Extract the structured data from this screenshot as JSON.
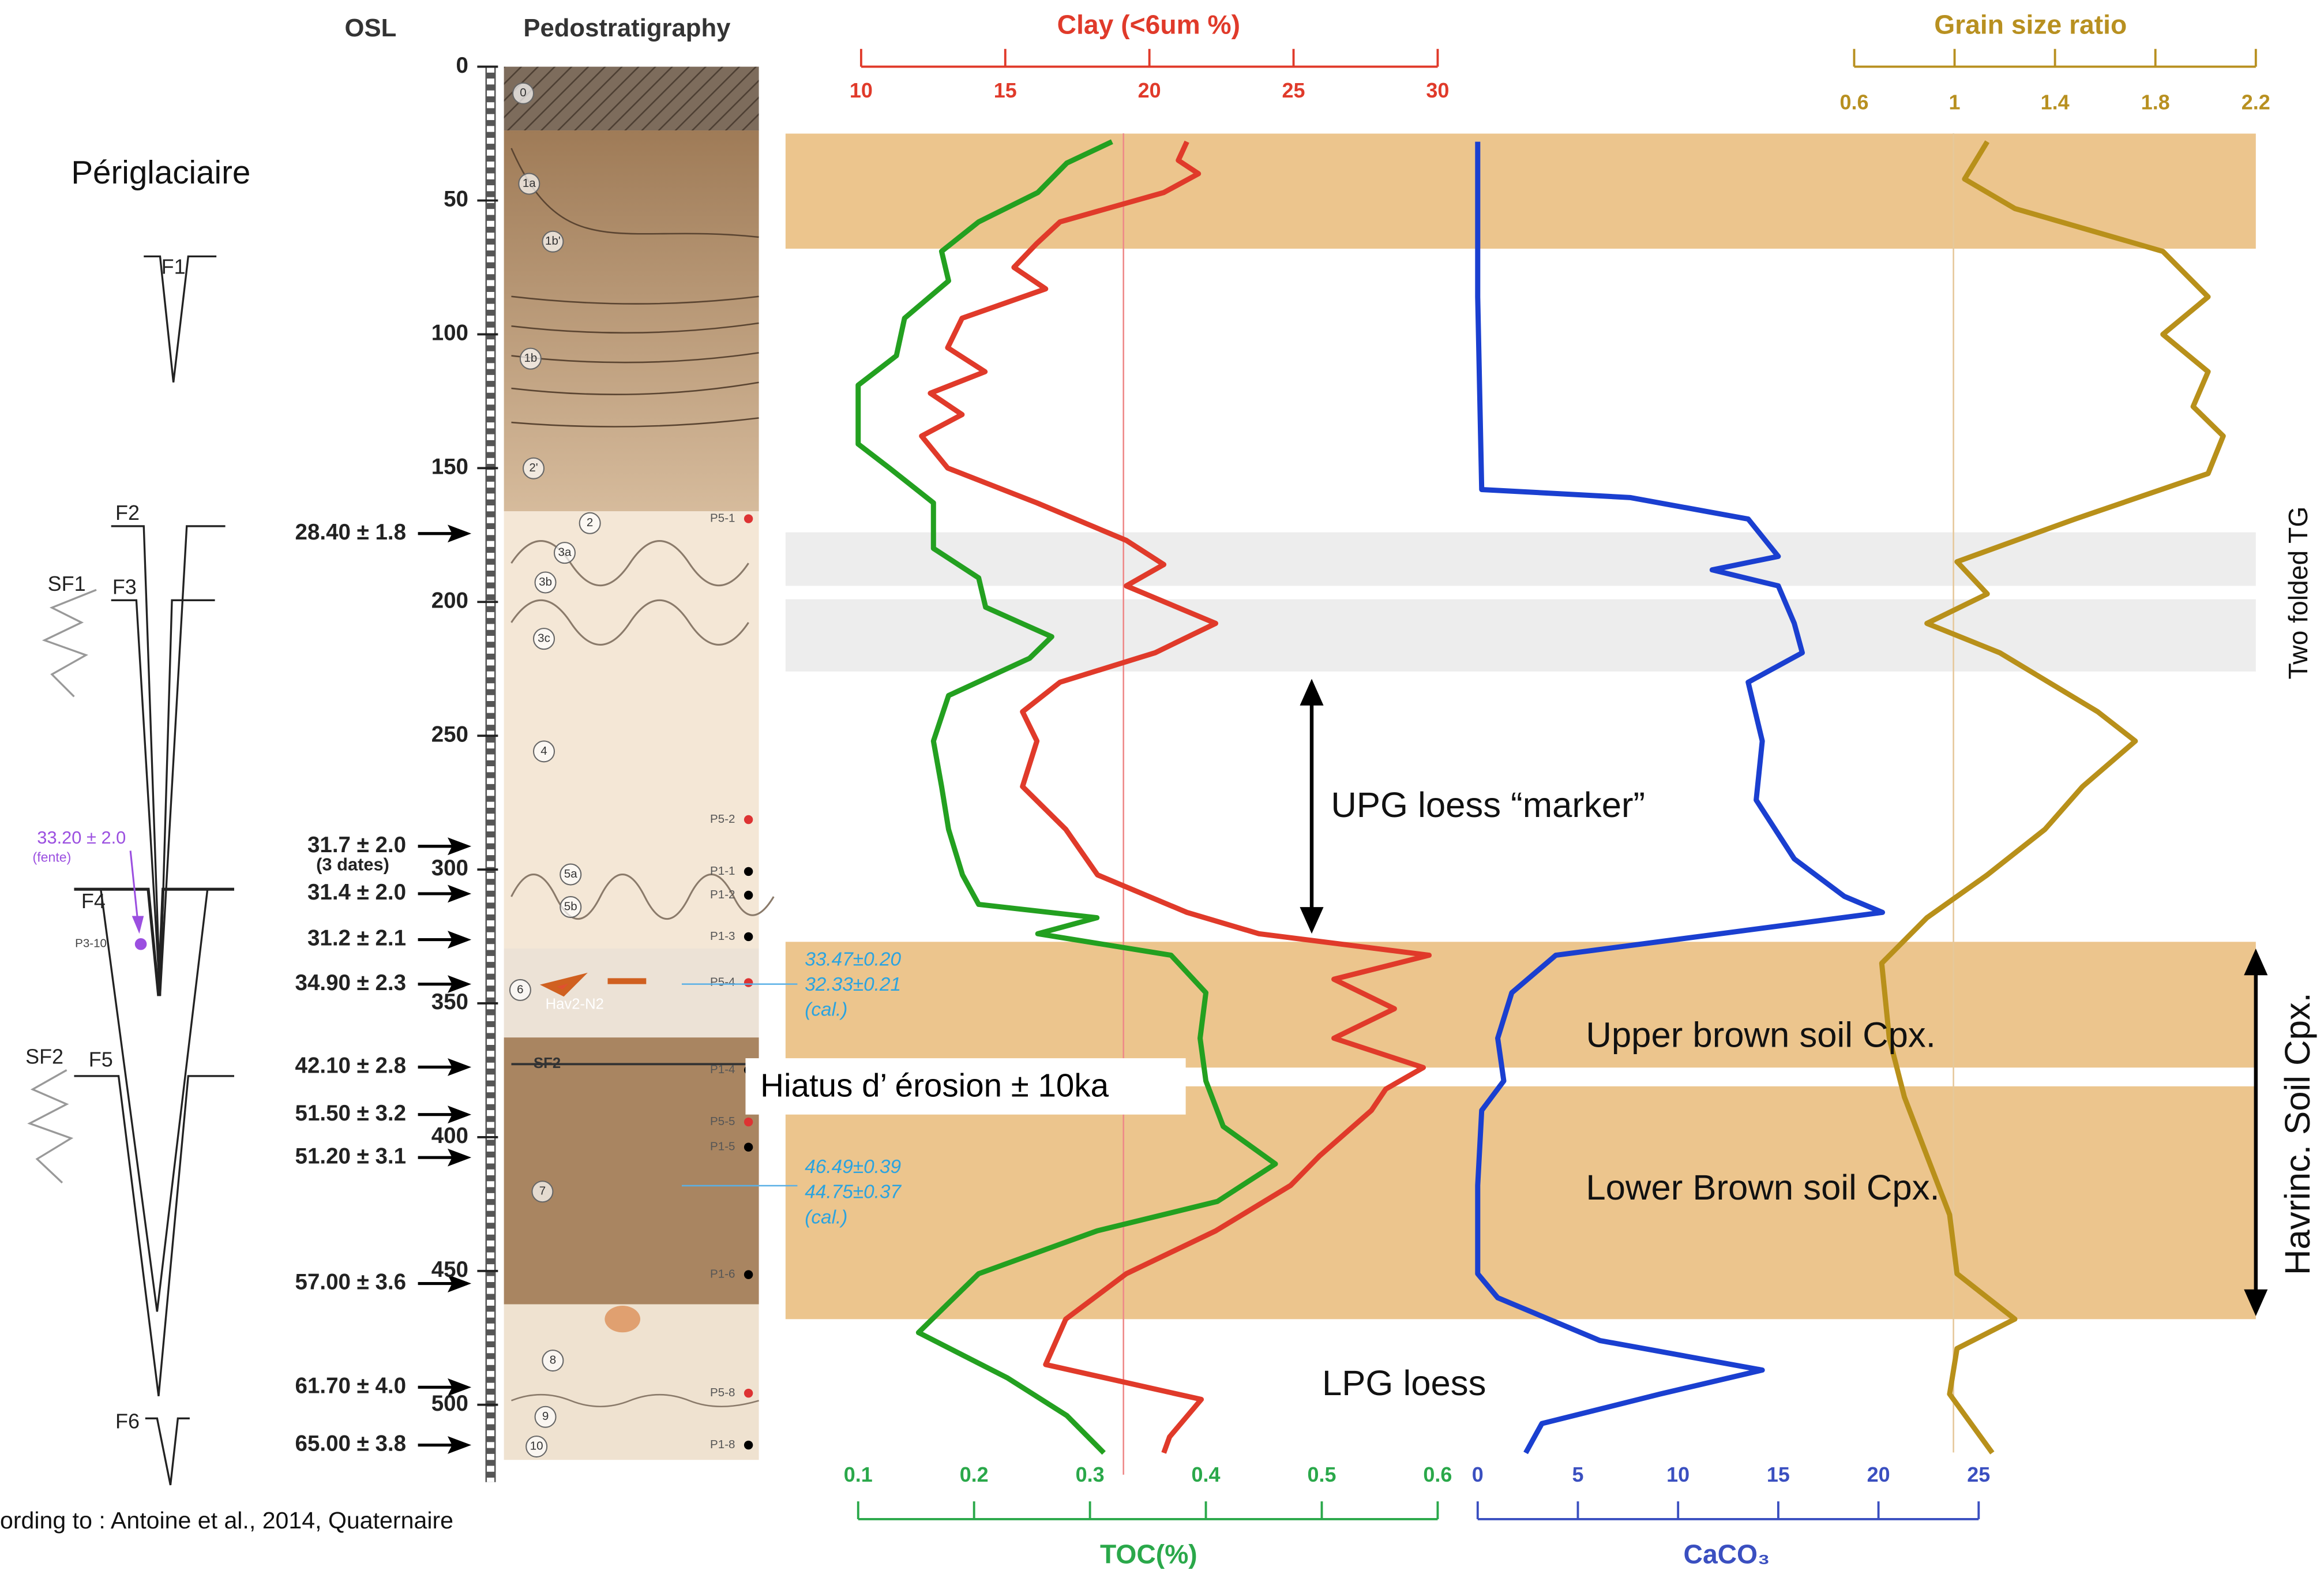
{
  "header": {
    "osl": "OSL",
    "pedostratigraphy": "Pedostratigraphy"
  },
  "depth_axis": {
    "ylim": [
      0,
      530
    ],
    "yticks": [
      0,
      50,
      100,
      150,
      200,
      250,
      300,
      350,
      400,
      450,
      500
    ]
  },
  "bands": [
    {
      "from": 25,
      "to": 68,
      "color": "#ecc58d"
    },
    {
      "from": 174,
      "to": 194,
      "color": "#ededed"
    },
    {
      "from": 199,
      "to": 226,
      "color": "#ededed"
    },
    {
      "from": 327,
      "to": 374,
      "color": "#ecc58d"
    },
    {
      "from": 381,
      "to": 468,
      "color": "#ecc58d"
    }
  ],
  "chart_data": [
    {
      "type": "line",
      "title": "Clay (<6um %)",
      "color": "#e03a2a",
      "title_color": "#e03a2a",
      "axis": "top",
      "xlim": [
        10,
        30
      ],
      "xticks": [
        10,
        15,
        20,
        25,
        30
      ],
      "depth": [
        28,
        35,
        40,
        47,
        58,
        66,
        75,
        83,
        94,
        105,
        114,
        122,
        130,
        138,
        150,
        163,
        177,
        186,
        194,
        208,
        219,
        230,
        241,
        252,
        269,
        285,
        302,
        316,
        324,
        332,
        341,
        352,
        363,
        374,
        382,
        390,
        407,
        418,
        435,
        451,
        468,
        485,
        498,
        512,
        518
      ],
      "values": [
        21.3,
        21.0,
        21.7,
        20.5,
        16.9,
        16.1,
        15.3,
        16.4,
        13.5,
        13.0,
        14.3,
        12.4,
        13.5,
        12.1,
        13.0,
        16.1,
        19.2,
        20.5,
        19.2,
        22.3,
        20.2,
        16.9,
        15.6,
        16.1,
        15.6,
        17.1,
        18.2,
        21.3,
        23.8,
        29.7,
        26.4,
        28.5,
        26.4,
        29.5,
        28.2,
        27.7,
        25.9,
        24.9,
        22.3,
        19.2,
        17.1,
        16.4,
        21.8,
        20.7,
        20.5
      ]
    },
    {
      "type": "line",
      "title": "TOC(%)",
      "color": "#23a020",
      "title_color": "#2aa84a",
      "axis": "bottom",
      "xlim": [
        0.1,
        0.6
      ],
      "xticks": [
        0.1,
        0.2,
        0.3,
        0.4,
        0.5,
        0.6
      ],
      "depth": [
        28,
        36,
        47,
        58,
        69,
        80,
        94,
        108,
        119,
        130,
        141,
        150,
        163,
        180,
        191,
        202,
        213,
        221,
        235,
        252,
        269,
        285,
        302,
        313,
        318,
        324,
        332,
        346,
        363,
        379,
        396,
        410,
        424,
        435,
        451,
        462,
        473,
        490,
        504,
        518
      ],
      "values": [
        0.319,
        0.28,
        0.255,
        0.204,
        0.172,
        0.178,
        0.14,
        0.133,
        0.1,
        0.1,
        0.1,
        0.127,
        0.165,
        0.165,
        0.204,
        0.21,
        0.267,
        0.248,
        0.178,
        0.165,
        0.172,
        0.178,
        0.19,
        0.204,
        0.306,
        0.255,
        0.37,
        0.4,
        0.395,
        0.4,
        0.415,
        0.46,
        0.41,
        0.306,
        0.204,
        0.178,
        0.152,
        0.229,
        0.28,
        0.312
      ]
    },
    {
      "type": "line",
      "title": "CaCO₃",
      "color": "#1a3fd0",
      "title_color": "#3a4fc0",
      "axis": "bottom",
      "xlim": [
        0,
        25
      ],
      "xticks": [
        0,
        5,
        10,
        15,
        20,
        25
      ],
      "depth": [
        28,
        86,
        158,
        161,
        169,
        183,
        188,
        194,
        208,
        219,
        230,
        252,
        274,
        296,
        310,
        316,
        324,
        332,
        346,
        363,
        379,
        390,
        418,
        451,
        460,
        476,
        487,
        496,
        507,
        518
      ],
      "values": [
        0,
        0,
        0.2,
        7.6,
        13.5,
        15.0,
        11.7,
        15.0,
        15.8,
        16.2,
        13.5,
        14.2,
        13.9,
        15.8,
        18.3,
        20.2,
        12.1,
        3.9,
        1.7,
        1.0,
        1.3,
        0.2,
        0,
        0,
        1.0,
        6.1,
        14.2,
        9.1,
        3.2,
        2.4
      ]
    },
    {
      "type": "line",
      "title": "Grain size ratio",
      "color": "#b8901a",
      "title_color": "#b89020",
      "axis": "top",
      "xlim": [
        0.6,
        2.2
      ],
      "xticks": [
        0.6,
        1,
        1.4,
        1.8,
        2.2
      ],
      "depth": [
        28,
        42,
        53,
        69,
        86,
        100,
        114,
        127,
        138,
        152,
        169,
        185,
        197,
        208,
        219,
        241,
        252,
        269,
        285,
        302,
        318,
        335,
        363,
        385,
        407,
        429,
        451,
        468,
        479,
        496,
        518
      ],
      "values": [
        1.13,
        1.04,
        1.24,
        1.83,
        2.01,
        1.83,
        2.01,
        1.95,
        2.07,
        2.01,
        1.48,
        1.01,
        1.13,
        0.89,
        1.18,
        1.57,
        1.72,
        1.51,
        1.36,
        1.13,
        0.89,
        0.71,
        0.74,
        0.8,
        0.89,
        0.98,
        1.01,
        1.24,
        1.01,
        0.98,
        1.15
      ]
    }
  ],
  "osl_dates": [
    "28.40 ± 1.8",
    "31.7 ± 2.0",
    "31.4 ± 2.0",
    "31.2 ± 2.1",
    "34.90 ± 2.3",
    "42.10 ± 2.8",
    "51.50 ± 3.2",
    "51.20 ± 3.1",
    "57.00 ± 3.6",
    "61.70 ± 4.0",
    "65.00 ± 3.8"
  ],
  "osl_note": "(3 dates)",
  "fentes": {
    "periglaciaire": "Périglaciaire",
    "labels": [
      "F1",
      "F2",
      "SF1",
      "F3",
      "F4",
      "SF2",
      "F5",
      "F6"
    ],
    "fente_date": "33.20 ± 2.0",
    "fente_note": "(fente)",
    "sample": "P3-10"
  },
  "units": [
    "0",
    "1a",
    "1b'",
    "1b",
    "2'",
    "2",
    "3a",
    "3b",
    "3c",
    "4",
    "5a",
    "5b",
    "6",
    "7",
    "8",
    "9",
    "10"
  ],
  "samples": [
    "P5-1",
    "P5-2",
    "P1-1",
    "P1-2",
    "P1-3",
    "P5-4",
    "P1-4",
    "P5-5",
    "P1-5",
    "P1-6",
    "P5-8",
    "P1-8"
  ],
  "cal_dates": [
    [
      "33.47±0.20",
      "32.33±0.21",
      "(cal.)"
    ],
    [
      "46.49±0.39",
      "44.75±0.37",
      "(cal.)"
    ]
  ],
  "annotations": {
    "upg": "UPG loess “marker”",
    "upper": "Upper brown soil Cpx.",
    "hiatus": "Hiatus d’ érosion ± 10ka",
    "lower": "Lower Brown soil Cpx.",
    "lpg": "LPG loess",
    "folded": "Two folded TG",
    "havrinc": "Havrinc. Soil Cpx.",
    "hav": "Hav2-N2",
    "sf2": "SF2"
  },
  "footer": "ording to : Antoine et al., 2014, Quaternaire"
}
